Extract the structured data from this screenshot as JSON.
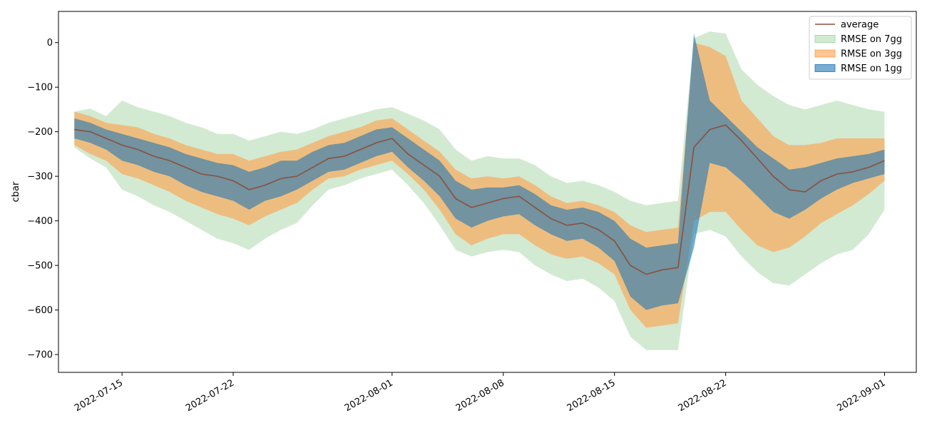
{
  "chart_data": {
    "type": "area",
    "title": "",
    "xlabel": "",
    "ylabel": "cbar",
    "x_start": "2022-07-12",
    "x_end": "2022-09-01",
    "xlim": [
      "2022-07-11",
      "2022-09-03"
    ],
    "ylim": [
      -740,
      70
    ],
    "grid": false,
    "legend_position": "top-right",
    "x_ticks": [
      "2022-07-15",
      "2022-07-22",
      "2022-08-01",
      "2022-08-08",
      "2022-08-15",
      "2022-08-22",
      "2022-09-01"
    ],
    "y_ticks": [
      0,
      -100,
      -200,
      -300,
      -400,
      -500,
      -600,
      -700
    ],
    "colors": {
      "average": "#8c4e3f",
      "rmse_7gg": "#9bd19b",
      "rmse_3gg": "#ff9f4a",
      "rmse_1gg": "#1f77b4"
    },
    "series": [
      {
        "name": "average",
        "type": "line",
        "x": [
          "2022-07-12",
          "2022-07-13",
          "2022-07-14",
          "2022-07-15",
          "2022-07-16",
          "2022-07-17",
          "2022-07-18",
          "2022-07-19",
          "2022-07-20",
          "2022-07-21",
          "2022-07-22",
          "2022-07-23",
          "2022-07-24",
          "2022-07-25",
          "2022-07-26",
          "2022-07-27",
          "2022-07-28",
          "2022-07-29",
          "2022-07-30",
          "2022-07-31",
          "2022-08-01",
          "2022-08-02",
          "2022-08-03",
          "2022-08-04",
          "2022-08-05",
          "2022-08-06",
          "2022-08-07",
          "2022-08-08",
          "2022-08-09",
          "2022-08-10",
          "2022-08-11",
          "2022-08-12",
          "2022-08-13",
          "2022-08-14",
          "2022-08-15",
          "2022-08-16",
          "2022-08-17",
          "2022-08-18",
          "2022-08-19",
          "2022-08-20",
          "2022-08-21",
          "2022-08-22",
          "2022-08-23",
          "2022-08-24",
          "2022-08-25",
          "2022-08-26",
          "2022-08-27",
          "2022-08-28",
          "2022-08-29",
          "2022-08-30",
          "2022-08-31",
          "2022-09-01"
        ],
        "values": [
          -195,
          -200,
          -215,
          -230,
          -240,
          -255,
          -265,
          -280,
          -295,
          -300,
          -310,
          -330,
          -320,
          -305,
          -300,
          -280,
          -260,
          -255,
          -240,
          -225,
          -215,
          -250,
          -275,
          -300,
          -350,
          -370,
          -360,
          -350,
          -345,
          -370,
          -395,
          -410,
          -405,
          -420,
          -445,
          -500,
          -520,
          -510,
          -505,
          -235,
          -195,
          -185,
          -220,
          -260,
          -300,
          -330,
          -335,
          -310,
          -295,
          -290,
          -280,
          -265
        ]
      },
      {
        "name": "RMSE on 7gg",
        "type": "band",
        "x": [
          "2022-07-12",
          "2022-07-13",
          "2022-07-14",
          "2022-07-15",
          "2022-07-16",
          "2022-07-17",
          "2022-07-18",
          "2022-07-19",
          "2022-07-20",
          "2022-07-21",
          "2022-07-22",
          "2022-07-23",
          "2022-07-24",
          "2022-07-25",
          "2022-07-26",
          "2022-07-27",
          "2022-07-28",
          "2022-07-29",
          "2022-07-30",
          "2022-07-31",
          "2022-08-01",
          "2022-08-02",
          "2022-08-03",
          "2022-08-04",
          "2022-08-05",
          "2022-08-06",
          "2022-08-07",
          "2022-08-08",
          "2022-08-09",
          "2022-08-10",
          "2022-08-11",
          "2022-08-12",
          "2022-08-13",
          "2022-08-14",
          "2022-08-15",
          "2022-08-16",
          "2022-08-17",
          "2022-08-18",
          "2022-08-19",
          "2022-08-20",
          "2022-08-21",
          "2022-08-22",
          "2022-08-23",
          "2022-08-24",
          "2022-08-25",
          "2022-08-26",
          "2022-08-27",
          "2022-08-28",
          "2022-08-29",
          "2022-08-30",
          "2022-08-31",
          "2022-09-01"
        ],
        "upper": [
          -155,
          -148,
          -165,
          -130,
          -145,
          -155,
          -165,
          -180,
          -190,
          -205,
          -205,
          -220,
          -210,
          -200,
          -205,
          -195,
          -180,
          -170,
          -160,
          -150,
          -145,
          -160,
          -175,
          -195,
          -240,
          -265,
          -255,
          -260,
          -260,
          -275,
          -300,
          -315,
          -310,
          -320,
          -335,
          -355,
          -365,
          -360,
          -355,
          10,
          25,
          20,
          -60,
          -95,
          -120,
          -140,
          -150,
          -140,
          -130,
          -140,
          -150,
          -155
        ],
        "lower": [
          -235,
          -260,
          -280,
          -330,
          -345,
          -365,
          -380,
          -400,
          -420,
          -440,
          -450,
          -465,
          -440,
          -420,
          -405,
          -365,
          -330,
          -320,
          -305,
          -295,
          -285,
          -320,
          -360,
          -410,
          -465,
          -480,
          -470,
          -465,
          -470,
          -500,
          -520,
          -535,
          -530,
          -550,
          -580,
          -660,
          -690,
          -690,
          -690,
          -430,
          -420,
          -435,
          -480,
          -515,
          -540,
          -545,
          -520,
          -495,
          -475,
          -465,
          -430,
          -375
        ]
      },
      {
        "name": "RMSE on 3gg",
        "type": "band",
        "x": [
          "2022-07-12",
          "2022-07-13",
          "2022-07-14",
          "2022-07-15",
          "2022-07-16",
          "2022-07-17",
          "2022-07-18",
          "2022-07-19",
          "2022-07-20",
          "2022-07-21",
          "2022-07-22",
          "2022-07-23",
          "2022-07-24",
          "2022-07-25",
          "2022-07-26",
          "2022-07-27",
          "2022-07-28",
          "2022-07-29",
          "2022-07-30",
          "2022-07-31",
          "2022-08-01",
          "2022-08-02",
          "2022-08-03",
          "2022-08-04",
          "2022-08-05",
          "2022-08-06",
          "2022-08-07",
          "2022-08-08",
          "2022-08-09",
          "2022-08-10",
          "2022-08-11",
          "2022-08-12",
          "2022-08-13",
          "2022-08-14",
          "2022-08-15",
          "2022-08-16",
          "2022-08-17",
          "2022-08-18",
          "2022-08-19",
          "2022-08-20",
          "2022-08-21",
          "2022-08-22",
          "2022-08-23",
          "2022-08-24",
          "2022-08-25",
          "2022-08-26",
          "2022-08-27",
          "2022-08-28",
          "2022-08-29",
          "2022-08-30",
          "2022-08-31",
          "2022-09-01"
        ],
        "upper": [
          -155,
          -165,
          -180,
          -185,
          -190,
          -205,
          -215,
          -230,
          -240,
          -250,
          -250,
          -265,
          -255,
          -245,
          -240,
          -225,
          -210,
          -200,
          -190,
          -175,
          -170,
          -195,
          -220,
          -245,
          -285,
          -305,
          -300,
          -305,
          -300,
          -320,
          -345,
          -360,
          -355,
          -365,
          -380,
          -410,
          -425,
          -420,
          -415,
          0,
          -10,
          -30,
          -130,
          -170,
          -210,
          -230,
          -230,
          -225,
          -215,
          -215,
          -215,
          -215
        ],
        "lower": [
          -230,
          -250,
          -265,
          -295,
          -305,
          -320,
          -335,
          -355,
          -370,
          -385,
          -395,
          -410,
          -390,
          -375,
          -360,
          -330,
          -305,
          -300,
          -285,
          -275,
          -265,
          -295,
          -330,
          -375,
          -430,
          -455,
          -440,
          -430,
          -430,
          -455,
          -475,
          -485,
          -480,
          -495,
          -520,
          -600,
          -640,
          -635,
          -630,
          -400,
          -380,
          -380,
          -420,
          -455,
          -470,
          -460,
          -435,
          -405,
          -385,
          -365,
          -340,
          -310
        ]
      },
      {
        "name": "RMSE on 1gg",
        "type": "band",
        "x": [
          "2022-07-12",
          "2022-07-13",
          "2022-07-14",
          "2022-07-15",
          "2022-07-16",
          "2022-07-17",
          "2022-07-18",
          "2022-07-19",
          "2022-07-20",
          "2022-07-21",
          "2022-07-22",
          "2022-07-23",
          "2022-07-24",
          "2022-07-25",
          "2022-07-26",
          "2022-07-27",
          "2022-07-28",
          "2022-07-29",
          "2022-07-30",
          "2022-07-31",
          "2022-08-01",
          "2022-08-02",
          "2022-08-03",
          "2022-08-04",
          "2022-08-05",
          "2022-08-06",
          "2022-08-07",
          "2022-08-08",
          "2022-08-09",
          "2022-08-10",
          "2022-08-11",
          "2022-08-12",
          "2022-08-13",
          "2022-08-14",
          "2022-08-15",
          "2022-08-16",
          "2022-08-17",
          "2022-08-18",
          "2022-08-19",
          "2022-08-20",
          "2022-08-21",
          "2022-08-22",
          "2022-08-23",
          "2022-08-24",
          "2022-08-25",
          "2022-08-26",
          "2022-08-27",
          "2022-08-28",
          "2022-08-29",
          "2022-08-30",
          "2022-08-31",
          "2022-09-01"
        ],
        "upper": [
          -170,
          -180,
          -195,
          -205,
          -215,
          -225,
          -235,
          -250,
          -260,
          -270,
          -275,
          -290,
          -280,
          -265,
          -265,
          -245,
          -230,
          -225,
          -210,
          -195,
          -190,
          -215,
          -240,
          -265,
          -310,
          -330,
          -325,
          -325,
          -320,
          -340,
          -365,
          -375,
          -370,
          -380,
          -400,
          -440,
          -460,
          -455,
          -450,
          20,
          -130,
          -165,
          -200,
          -235,
          -260,
          -285,
          -280,
          -270,
          -260,
          -255,
          -250,
          -240
        ],
        "lower": [
          -215,
          -225,
          -240,
          -265,
          -275,
          -290,
          -300,
          -320,
          -335,
          -345,
          -355,
          -375,
          -355,
          -345,
          -330,
          -310,
          -290,
          -285,
          -270,
          -255,
          -245,
          -280,
          -310,
          -345,
          -395,
          -415,
          -400,
          -390,
          -385,
          -410,
          -430,
          -445,
          -440,
          -460,
          -490,
          -570,
          -600,
          -590,
          -585,
          -460,
          -270,
          -280,
          -310,
          -345,
          -380,
          -395,
          -375,
          -350,
          -330,
          -315,
          -305,
          -295
        ]
      }
    ]
  }
}
